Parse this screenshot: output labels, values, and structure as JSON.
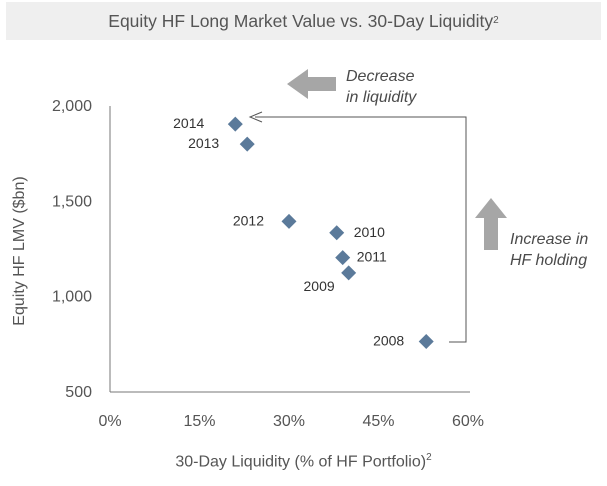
{
  "chart_data": {
    "type": "scatter",
    "title": "Equity HF Long Market Value vs. 30-Day Liquidity",
    "title_superscript": "2",
    "xlabel": "30-Day Liquidity (% of HF Portfolio)",
    "xlabel_superscript": "2",
    "ylabel": "Equity HF LMV ($bn)",
    "xlim": [
      0,
      60
    ],
    "ylim": [
      500,
      2000
    ],
    "x_ticks": [
      "0%",
      "15%",
      "30%",
      "45%",
      "60%"
    ],
    "x_tick_values": [
      0,
      15,
      30,
      45,
      60
    ],
    "y_ticks": [
      "2,000",
      "1,500",
      "1,000",
      "500"
    ],
    "y_tick_values": [
      2000,
      1500,
      1000,
      500
    ],
    "grid": false,
    "marker_color": "#5b7a9a",
    "points": [
      {
        "label": "2014",
        "x": 21,
        "y": 1905
      },
      {
        "label": "2013",
        "x": 23,
        "y": 1800
      },
      {
        "label": "2012",
        "x": 30,
        "y": 1395
      },
      {
        "label": "2010",
        "x": 38,
        "y": 1335
      },
      {
        "label": "2011",
        "x": 39,
        "y": 1205
      },
      {
        "label": "2009",
        "x": 40,
        "y": 1125
      },
      {
        "label": "2008",
        "x": 53,
        "y": 765
      }
    ],
    "annotations": [
      {
        "text_line1": "Decrease",
        "text_line2": "in liquidity"
      },
      {
        "text_line1": "Increase in",
        "text_line2": "HF holding"
      }
    ]
  },
  "colors": {
    "title_bg": "#efefef",
    "text": "#555555",
    "axis": "#777777",
    "big_arrow": "#a6a6a6"
  }
}
